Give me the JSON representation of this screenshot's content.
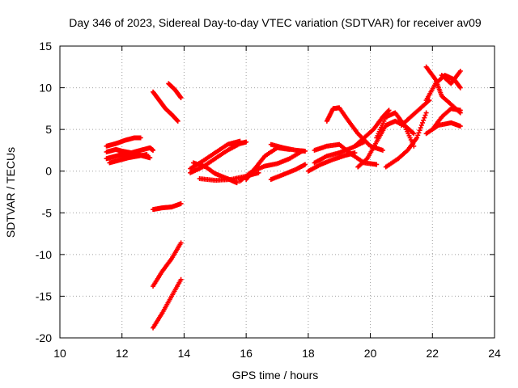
{
  "chart_data": {
    "type": "scatter",
    "title": "Day 346 of 2023, Sidereal Day-to-day VTEC variation (SDTVAR) for receiver av09",
    "xlabel": "GPS time / hours",
    "ylabel": "SDTVAR / TECUs",
    "xlim": [
      10,
      24
    ],
    "ylim": [
      -20,
      15
    ],
    "xticks": [
      10,
      12,
      14,
      16,
      18,
      20,
      22,
      24
    ],
    "yticks": [
      -20,
      -15,
      -10,
      -5,
      0,
      5,
      10,
      15
    ],
    "grid": true,
    "marker_color": "#ff0000",
    "series": [
      {
        "x": [
          11.5,
          11.8,
          12.0,
          12.3,
          12.6,
          12.9,
          13.0
        ],
        "y": [
          2.3,
          2.6,
          2.4,
          2.2,
          2.5,
          2.8,
          2.5
        ]
      },
      {
        "x": [
          11.5,
          11.7,
          11.9,
          12.1,
          12.3,
          12.5,
          12.7,
          12.9
        ],
        "y": [
          1.5,
          1.7,
          1.9,
          2.0,
          2.2,
          2.0,
          1.8,
          1.6
        ]
      },
      {
        "x": [
          11.5,
          11.8,
          12.1,
          12.4,
          12.6
        ],
        "y": [
          3.0,
          3.3,
          3.7,
          4.0,
          4.0
        ]
      },
      {
        "x": [
          11.6,
          11.9,
          12.2,
          12.5,
          12.8
        ],
        "y": [
          1.0,
          1.3,
          1.6,
          1.8,
          2.0
        ]
      },
      {
        "x": [
          13.0,
          13.2,
          13.4,
          13.6,
          13.8
        ],
        "y": [
          9.5,
          8.5,
          7.5,
          6.8,
          6.0
        ]
      },
      {
        "x": [
          13.5,
          13.7,
          13.9
        ],
        "y": [
          10.5,
          9.8,
          8.8
        ]
      },
      {
        "x": [
          13.0,
          13.3,
          13.6,
          13.9
        ],
        "y": [
          -4.6,
          -4.4,
          -4.3,
          -3.9
        ]
      },
      {
        "x": [
          13.0,
          13.3,
          13.6,
          13.9
        ],
        "y": [
          -13.8,
          -12.0,
          -10.5,
          -8.6
        ]
      },
      {
        "x": [
          13.0,
          13.3,
          13.6,
          13.9
        ],
        "y": [
          -18.8,
          -17.0,
          -15.0,
          -13.0
        ]
      },
      {
        "x": [
          14.2,
          14.6,
          15.0,
          15.4,
          15.8,
          16.0
        ],
        "y": [
          -0.2,
          0.5,
          1.5,
          2.5,
          3.3,
          3.5
        ]
      },
      {
        "x": [
          14.3,
          14.7,
          15.0,
          15.4,
          15.7
        ],
        "y": [
          1.0,
          0.5,
          -0.3,
          -0.9,
          -1.4
        ]
      },
      {
        "x": [
          14.2,
          14.6,
          15.0,
          15.4,
          15.8
        ],
        "y": [
          0.3,
          1.2,
          2.2,
          3.2,
          3.6
        ]
      },
      {
        "x": [
          14.5,
          15.0,
          15.5,
          16.0,
          16.4
        ],
        "y": [
          -0.9,
          -1.1,
          -1.0,
          -0.6,
          -0.2
        ]
      },
      {
        "x": [
          15.8,
          16.2,
          16.6,
          17.0,
          17.4,
          17.8
        ],
        "y": [
          -1.2,
          0.0,
          0.6,
          0.9,
          1.5,
          2.4
        ]
      },
      {
        "x": [
          16.0,
          16.3,
          16.6,
          17.0,
          17.4
        ],
        "y": [
          -1.0,
          0.4,
          1.8,
          2.8,
          2.6
        ]
      },
      {
        "x": [
          16.8,
          17.2,
          17.6,
          17.9
        ],
        "y": [
          3.2,
          2.8,
          2.5,
          2.4
        ]
      },
      {
        "x": [
          16.8,
          17.2,
          17.6,
          17.9
        ],
        "y": [
          -1.0,
          -0.4,
          0.2,
          0.8
        ]
      },
      {
        "x": [
          18.0,
          18.4,
          18.8,
          19.2,
          19.5
        ],
        "y": [
          0.0,
          0.8,
          1.4,
          1.9,
          2.2
        ]
      },
      {
        "x": [
          18.2,
          18.6,
          19.0,
          19.4,
          19.8,
          20.2
        ],
        "y": [
          2.5,
          3.0,
          3.2,
          2.0,
          1.0,
          0.8
        ]
      },
      {
        "x": [
          18.6,
          18.8,
          19.0,
          19.3,
          19.6,
          20.0,
          20.4
        ],
        "y": [
          6.0,
          7.5,
          7.6,
          6.0,
          4.5,
          3.0,
          2.5
        ]
      },
      {
        "x": [
          18.2,
          18.6,
          19.0,
          19.4,
          19.8
        ],
        "y": [
          1.0,
          1.8,
          2.2,
          2.8,
          3.5
        ]
      },
      {
        "x": [
          19.5,
          19.8,
          20.1,
          20.4,
          20.6
        ],
        "y": [
          3.0,
          4.0,
          5.0,
          6.5,
          7.3
        ]
      },
      {
        "x": [
          19.6,
          19.9,
          20.2,
          20.5,
          20.8,
          21.1,
          21.4
        ],
        "y": [
          0.5,
          1.5,
          3.5,
          5.5,
          6.0,
          5.5,
          4.5
        ]
      },
      {
        "x": [
          20.2,
          20.5,
          20.8,
          21.1,
          21.4
        ],
        "y": [
          4.0,
          6.5,
          7.0,
          5.5,
          3.0
        ]
      },
      {
        "x": [
          20.5,
          20.9,
          21.2,
          21.5,
          21.8
        ],
        "y": [
          0.5,
          1.5,
          2.5,
          4.0,
          7.0
        ]
      },
      {
        "x": [
          21.0,
          21.3,
          21.6,
          21.9
        ],
        "y": [
          5.5,
          6.5,
          7.5,
          8.5
        ]
      },
      {
        "x": [
          21.8,
          22.1,
          22.4,
          22.7,
          22.9
        ],
        "y": [
          8.5,
          10.5,
          11.5,
          11.0,
          10.0
        ]
      },
      {
        "x": [
          21.8,
          22.1,
          22.3,
          22.6,
          22.9
        ],
        "y": [
          12.5,
          11.0,
          9.0,
          8.0,
          7.0
        ]
      },
      {
        "x": [
          22.0,
          22.3,
          22.6,
          22.9
        ],
        "y": [
          5.0,
          6.5,
          7.5,
          7.3
        ]
      },
      {
        "x": [
          21.8,
          22.2,
          22.6,
          22.9
        ],
        "y": [
          4.5,
          5.5,
          5.8,
          5.4
        ]
      },
      {
        "x": [
          22.3,
          22.6,
          22.9
        ],
        "y": [
          11.5,
          10.5,
          12.0
        ]
      }
    ]
  }
}
